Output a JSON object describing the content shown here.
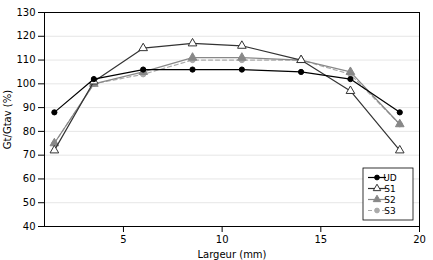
{
  "chart_data": {
    "type": "line",
    "x": [
      1.5,
      3.5,
      6,
      8.5,
      11,
      14,
      16.5,
      19
    ],
    "series": [
      {
        "name": "UD",
        "color": "#000000",
        "marker": "circle",
        "line_style": "solid",
        "values": [
          88,
          102,
          106,
          106,
          106,
          105,
          102,
          88
        ]
      },
      {
        "name": "S1",
        "color": "#333333",
        "marker": "triangle-open",
        "line_style": "solid",
        "values": [
          72,
          101,
          115,
          117,
          116,
          110,
          97,
          72
        ]
      },
      {
        "name": "S2",
        "color": "#888888",
        "marker": "triangle",
        "line_style": "solid",
        "values": [
          75,
          100,
          105,
          111,
          111,
          110,
          105,
          83
        ]
      },
      {
        "name": "S3",
        "color": "#aaaaaa",
        "marker": "circle",
        "line_style": "dashed",
        "values": [
          75,
          100,
          104,
          110,
          110,
          110,
          104,
          83
        ]
      }
    ],
    "xlabel": "Largeur (mm)",
    "ylabel": "Gt/Gtav (%)",
    "xlim": [
      1,
      20
    ],
    "ylim": [
      40,
      130
    ],
    "xticks": [
      5,
      10,
      15,
      20
    ],
    "yticks": [
      40,
      50,
      60,
      70,
      80,
      90,
      100,
      110,
      120,
      130
    ],
    "grid": "y",
    "legend": "lower right"
  }
}
